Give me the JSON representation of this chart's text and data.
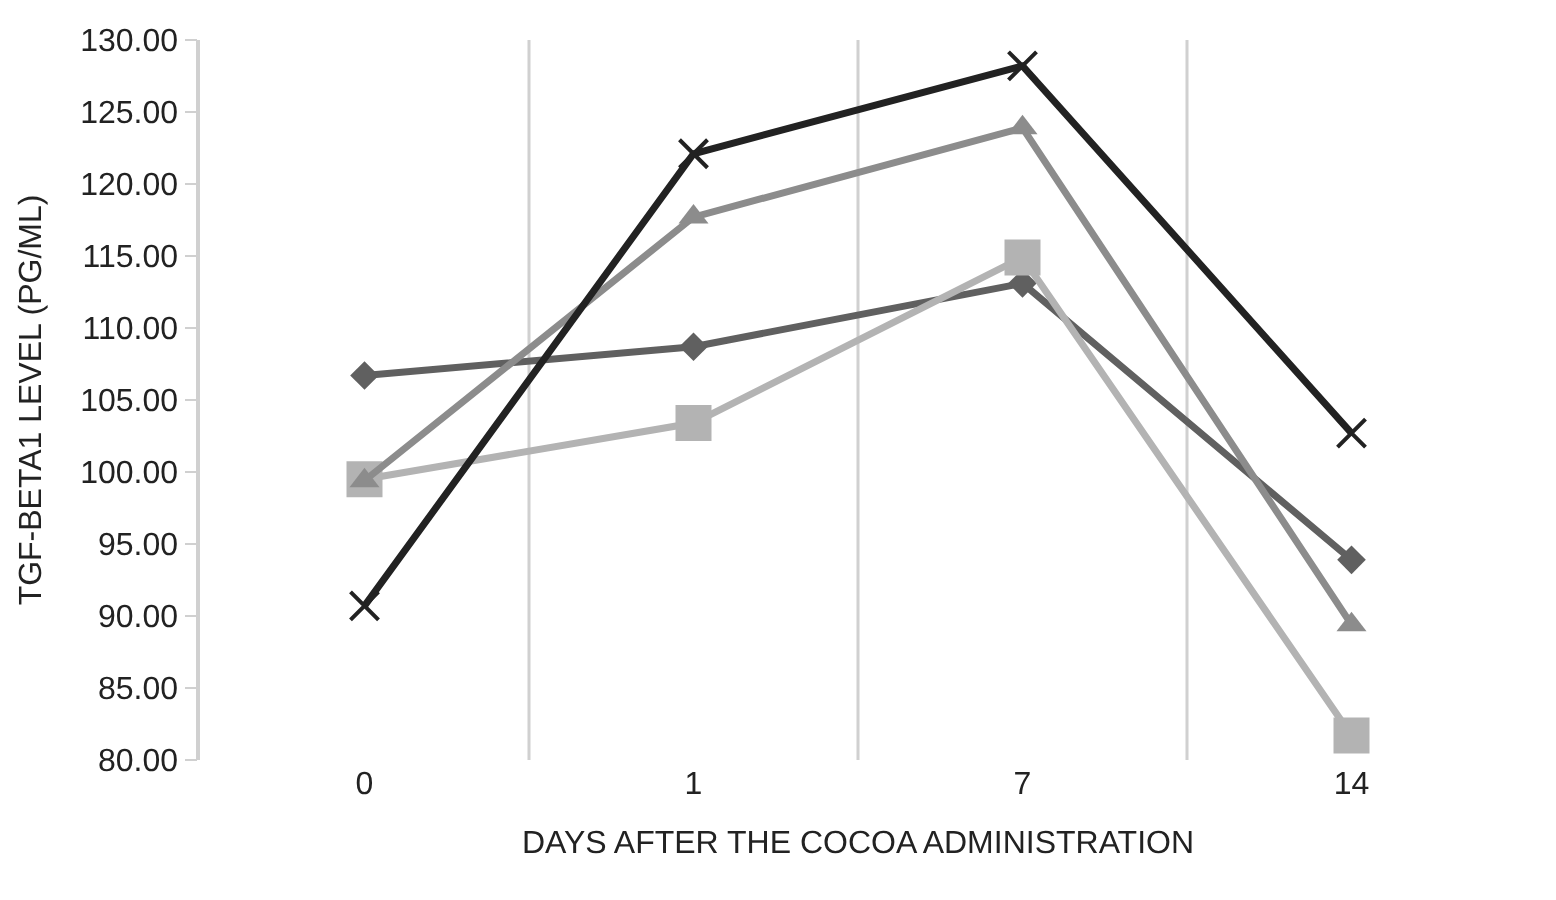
{
  "chart_data": {
    "type": "line",
    "xlabel": "DAYS AFTER THE COCOA ADMINISTRATION",
    "ylabel": "TGF-BETA1 LEVEL (PG/ML)",
    "categories": [
      "0",
      "1",
      "7",
      "14"
    ],
    "series": [
      {
        "color": "#606060",
        "marker": "diamond",
        "values": [
          106.7,
          108.7,
          113.1,
          93.9
        ]
      },
      {
        "color": "#b3b3b3",
        "marker": "square",
        "values": [
          99.5,
          103.4,
          114.9,
          81.7
        ]
      },
      {
        "color": "#8c8c8c",
        "marker": "triangle",
        "values": [
          99.4,
          117.7,
          123.9,
          89.4
        ]
      },
      {
        "color": "#222222",
        "marker": "cross",
        "values": [
          90.7,
          122.1,
          128.2,
          102.7
        ]
      }
    ],
    "ylim": [
      80,
      130
    ],
    "yticks": [
      {
        "value": 80,
        "label": "80.00"
      },
      {
        "value": 85,
        "label": "85.00"
      },
      {
        "value": 90,
        "label": "90.00"
      },
      {
        "value": 95,
        "label": "95.00"
      },
      {
        "value": 100,
        "label": "100.00"
      },
      {
        "value": 105,
        "label": "105.00"
      },
      {
        "value": 110,
        "label": "110.00"
      },
      {
        "value": 115,
        "label": "115.00"
      },
      {
        "value": 120,
        "label": "120.00"
      },
      {
        "value": 125,
        "label": "125.00"
      },
      {
        "value": 130,
        "label": "130.00"
      }
    ],
    "grid": "x",
    "line_style": "solid"
  }
}
